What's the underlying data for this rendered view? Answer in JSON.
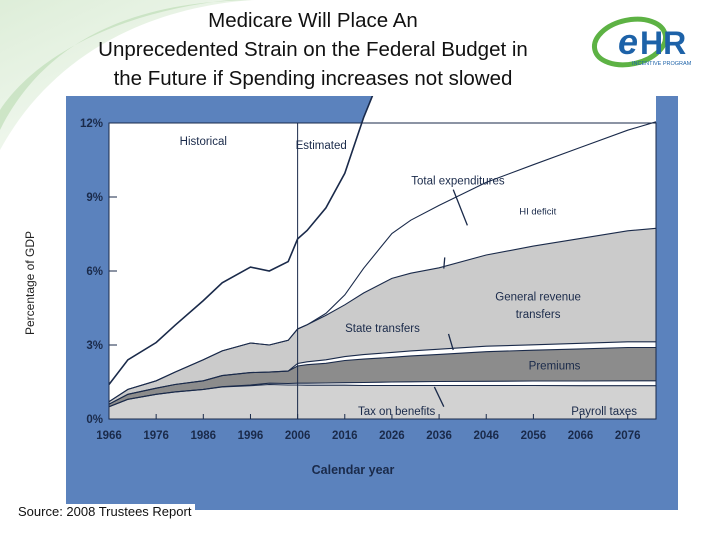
{
  "slide": {
    "title_lines": [
      "Medicare Will Place An",
      "Unprecedented Strain on the Federal Budget in",
      "the Future if Spending increases not slowed"
    ],
    "y_axis_title": "Percentage of GDP",
    "source": "Source: 2008 Trustees Report",
    "logo": {
      "brand": "eHR",
      "sub": "INCENTIVE PROGRAM",
      "colors": {
        "green": "#5db244",
        "blue": "#1d62a8"
      }
    }
  },
  "colors": {
    "panel": "#5b82bd",
    "plot": "#ffffff",
    "gray_light": "#cfcfcf",
    "gray_dark": "#8f8f8f",
    "line": "#1a2a4a"
  },
  "chart_data": {
    "type": "area",
    "title": "",
    "xlabel": "Calendar year",
    "ylabel": "",
    "xlim": [
      1966,
      2082
    ],
    "ylim": [
      0,
      12
    ],
    "x_ticks": [
      "1966",
      "1976",
      "1986",
      "1996",
      "2006",
      "2016",
      "2026",
      "2036",
      "2046",
      "2056",
      "2066",
      "2076"
    ],
    "y_ticks": [
      "0%",
      "3%",
      "6%",
      "9%",
      "12%"
    ],
    "x": [
      1966,
      1970,
      1976,
      1980,
      1986,
      1990,
      1996,
      2000,
      2004,
      2006,
      2008,
      2012,
      2016,
      2020,
      2026,
      2030,
      2036,
      2046,
      2056,
      2066,
      2076,
      2082
    ],
    "series": [
      {
        "name": "Payroll taxes",
        "values": [
          0.5,
          0.8,
          1.0,
          1.1,
          1.2,
          1.3,
          1.35,
          1.4,
          1.38,
          1.38,
          1.37,
          1.37,
          1.37,
          1.36,
          1.36,
          1.36,
          1.36,
          1.36,
          1.36,
          1.35,
          1.35,
          1.35
        ]
      },
      {
        "name": "Tax on benefits",
        "values": [
          0,
          0,
          0,
          0,
          0,
          0.01,
          0.03,
          0.05,
          0.06,
          0.07,
          0.08,
          0.09,
          0.1,
          0.12,
          0.14,
          0.15,
          0.16,
          0.17,
          0.18,
          0.19,
          0.2,
          0.2
        ]
      },
      {
        "name": "Premiums",
        "values": [
          0.1,
          0.2,
          0.25,
          0.3,
          0.35,
          0.45,
          0.5,
          0.45,
          0.5,
          0.7,
          0.75,
          0.8,
          0.9,
          0.95,
          1.0,
          1.05,
          1.1,
          1.2,
          1.25,
          1.3,
          1.35,
          1.35
        ]
      },
      {
        "name": "State transfers",
        "values": [
          0,
          0,
          0,
          0,
          0,
          0,
          0,
          0,
          0,
          0.1,
          0.12,
          0.14,
          0.16,
          0.18,
          0.2,
          0.2,
          0.21,
          0.22,
          0.22,
          0.23,
          0.23,
          0.23
        ]
      },
      {
        "name": "General revenue transfers",
        "values": [
          0.1,
          0.2,
          0.3,
          0.5,
          0.85,
          1.0,
          1.2,
          1.1,
          1.25,
          1.4,
          1.5,
          1.8,
          2.1,
          2.5,
          3.0,
          3.15,
          3.3,
          3.7,
          4.0,
          4.25,
          4.5,
          4.6
        ]
      },
      {
        "name": "HI deficit",
        "values": [
          0,
          0,
          0,
          0,
          0,
          0,
          0,
          0,
          0,
          0,
          0,
          0.08,
          0.4,
          1.0,
          1.82,
          2.15,
          2.53,
          2.94,
          3.3,
          3.69,
          4.08,
          4.32
        ]
      },
      {
        "name": "Total expenditures",
        "values": [
          0.7,
          1.2,
          1.55,
          1.9,
          2.4,
          2.76,
          3.08,
          3.0,
          3.19,
          3.65,
          3.82,
          4.28,
          4.93,
          6.11,
          7.52,
          8.06,
          8.66,
          9.59,
          10.31,
          11.01,
          11.71,
          12.05
        ]
      }
    ],
    "annotations": [
      "Historical",
      "Estimated",
      "Total expenditures",
      "HI deficit",
      "General revenue",
      "transfers",
      "State transfers",
      "Premiums",
      "Tax on benefits",
      "Payroll taxes"
    ]
  }
}
